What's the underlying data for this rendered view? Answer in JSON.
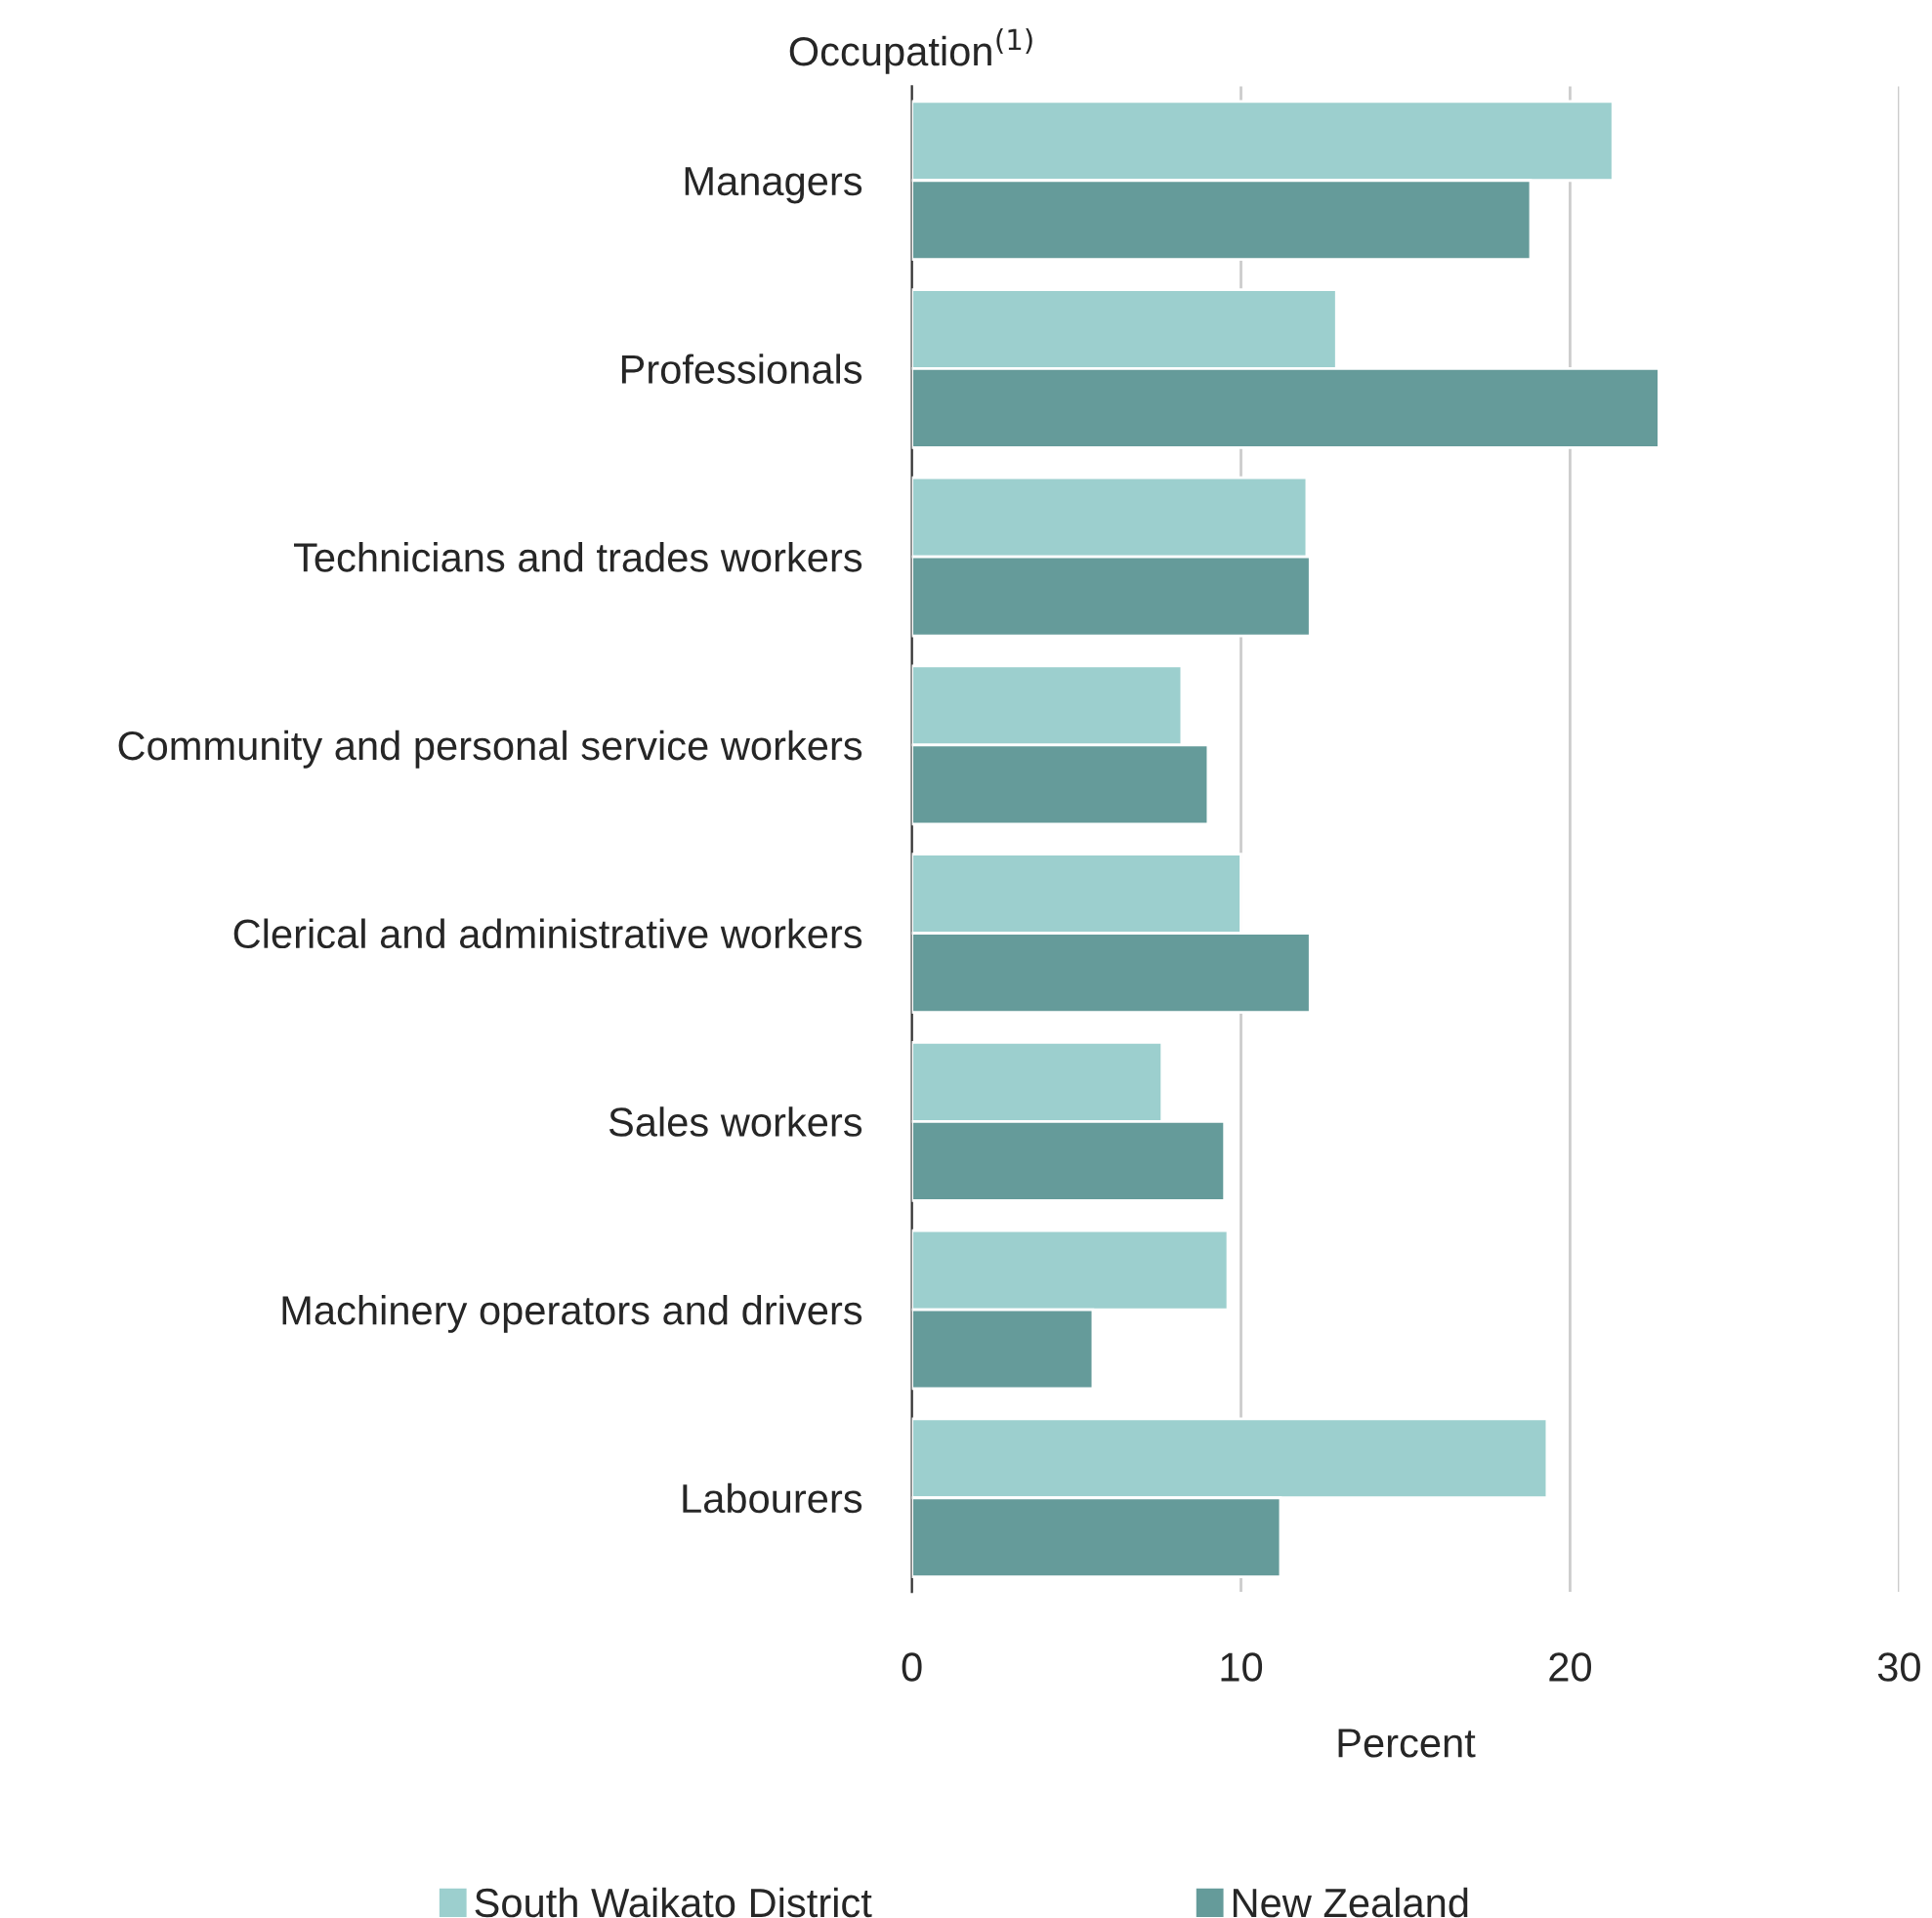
{
  "chart_data": {
    "type": "bar",
    "orientation": "horizontal",
    "ylabel": "Occupation$^{(1)}$",
    "xlabel": "Percent",
    "categories": [
      "Managers",
      "Professionals",
      "Technicians and trades workers",
      "Community and personal service workers",
      "Clerical and administrative workers",
      "Sales workers",
      "Machinery operators and drivers",
      "Labourers"
    ],
    "series": [
      {
        "name": "South Waikato District",
        "color": "#9ccfce",
        "values": [
          21.3,
          12.9,
          12.0,
          8.2,
          10.0,
          7.6,
          9.6,
          19.3
        ]
      },
      {
        "name": "New Zealand",
        "color": "#659b9a",
        "values": [
          18.8,
          22.7,
          12.1,
          9.0,
          12.1,
          9.5,
          5.5,
          11.2
        ]
      }
    ],
    "xlim": [
      0,
      30
    ],
    "xticks": [
      0,
      10,
      20,
      30
    ],
    "grid": "x",
    "legend": "bottom"
  }
}
